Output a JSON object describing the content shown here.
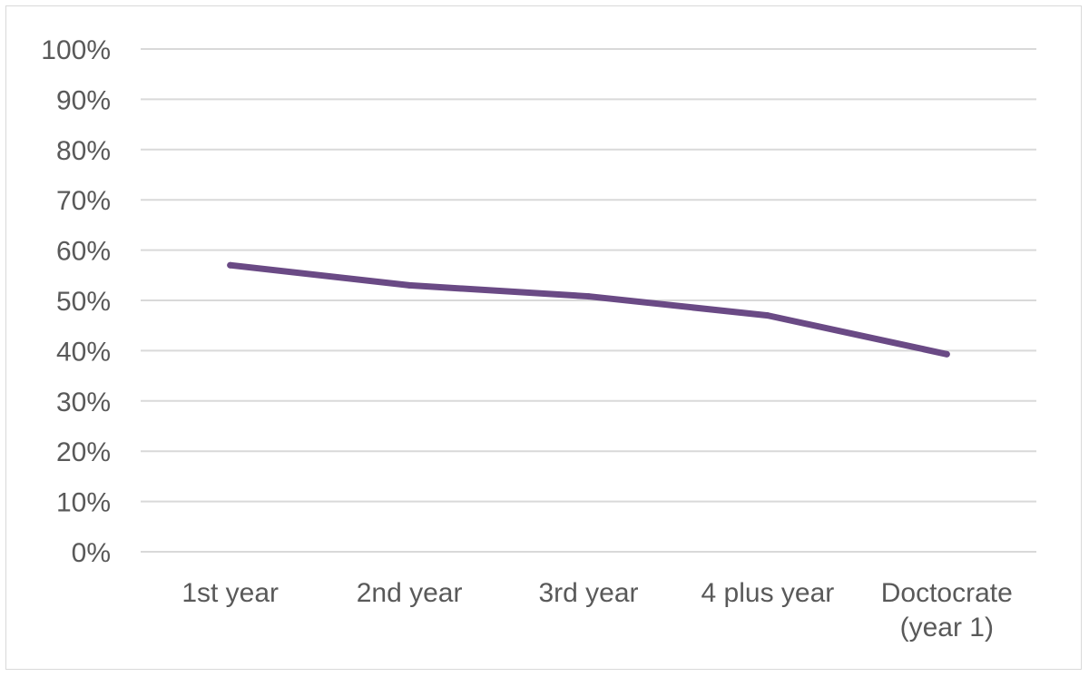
{
  "chart_data": {
    "type": "line",
    "categories": [
      "1st year",
      "2nd year",
      "3rd year",
      "4 plus year",
      "Doctocrate (year 1)"
    ],
    "category_lines": [
      [
        "1st year"
      ],
      [
        "2nd year"
      ],
      [
        "3rd year"
      ],
      [
        "4 plus year"
      ],
      [
        "Doctocrate",
        "(year 1)"
      ]
    ],
    "series": [
      {
        "values": [
          57,
          53,
          50.8,
          47,
          39.3
        ]
      }
    ],
    "ylim": [
      0,
      100
    ],
    "yticks": [
      "0%",
      "10%",
      "20%",
      "30%",
      "40%",
      "50%",
      "60%",
      "70%",
      "80%",
      "90%",
      "100%"
    ],
    "grid": true,
    "colors": {
      "line": "#6a4a85",
      "grid": "#d9d9d9",
      "text": "#595959"
    }
  }
}
